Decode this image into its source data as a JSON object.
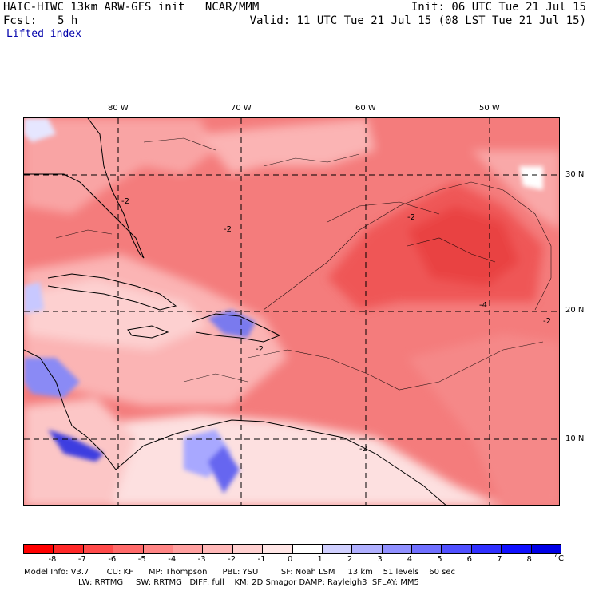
{
  "header": {
    "model_title": "HAIC-HIWC 13km ARW-GFS init   NCAR/MMM",
    "init_time": "Init: 06 UTC Tue 21 Jul 15",
    "fcst_label": "Fcst:",
    "fcst_value": "5 h",
    "valid_time": "Valid: 11 UTC Tue 21 Jul 15 (08 LST Tue 21 Jul 15)",
    "field_name": "Lifted index"
  },
  "map": {
    "lon_labels": [
      "80 W",
      "70 W",
      "60 W",
      "50 W"
    ],
    "lat_labels": [
      "30 N",
      "20 N",
      "10 N"
    ],
    "contour_labels": [
      "-2",
      "-2",
      "-2",
      "-2",
      "-4",
      "-2",
      "-2"
    ]
  },
  "colorbar": {
    "labels": [
      "-8",
      "-7",
      "-6",
      "-5",
      "-4",
      "-3",
      "-2",
      "-1",
      "0",
      "1",
      "2",
      "3",
      "4",
      "5",
      "6",
      "7",
      "8"
    ],
    "unit": "°C",
    "colors": [
      "#ff0000",
      "#ff2828",
      "#ff4a4a",
      "#ff6a6a",
      "#ff8585",
      "#ffa0a0",
      "#ffb8b8",
      "#ffd0d0",
      "#ffe6e6",
      "#ffffff",
      "#d0d0ff",
      "#b0b0ff",
      "#9090ff",
      "#7070ff",
      "#5050ff",
      "#3030ff",
      "#1010ff",
      "#0000e6"
    ]
  },
  "footer": {
    "line1": "Model Info: V3.7       CU: KF      MP: Thompson      PBL: YSU         SF: Noah LSM     13 km    51 levels    60 sec",
    "line2": "LW: RRTMG     SW: RRTMG   DIFF: full    KM: 2D Smagor DAMP: Rayleigh3  SFLAY: MM5"
  }
}
